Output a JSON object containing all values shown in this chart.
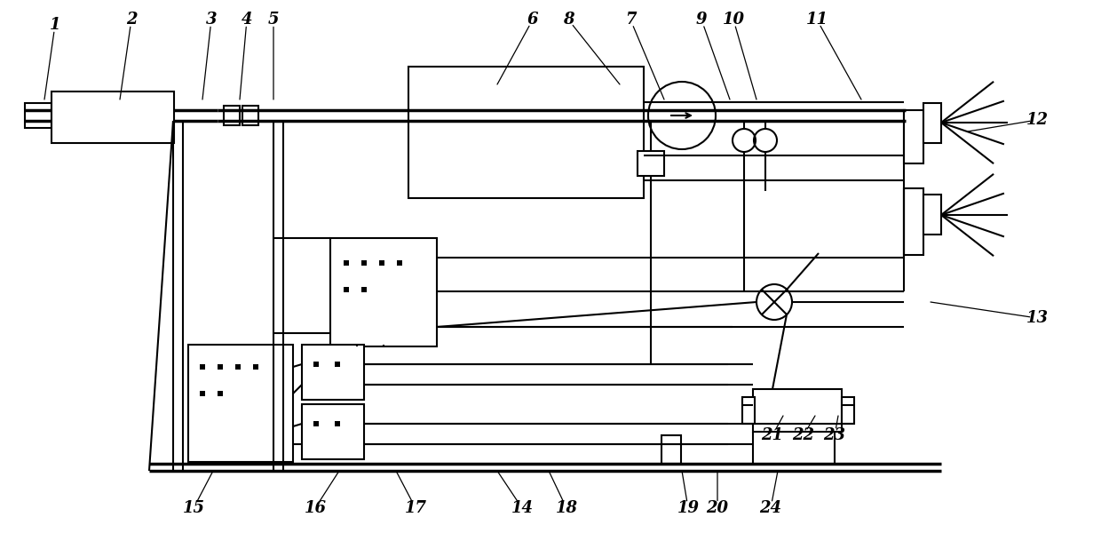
{
  "bg": "#ffffff",
  "lc": "#000000",
  "lw": 1.5,
  "tlw": 2.5,
  "lfs": 13,
  "fig_w": 12.4,
  "fig_h": 6.0,
  "dpi": 100,
  "labels": [
    [
      "1",
      62,
      28,
      50,
      112
    ],
    [
      "2",
      148,
      22,
      135,
      112
    ],
    [
      "3",
      238,
      22,
      228,
      112
    ],
    [
      "4",
      278,
      22,
      270,
      112
    ],
    [
      "5",
      308,
      22,
      308,
      112
    ],
    [
      "6",
      600,
      22,
      560,
      95
    ],
    [
      "8",
      640,
      22,
      698,
      95
    ],
    [
      "7",
      710,
      22,
      748,
      112
    ],
    [
      "9",
      790,
      22,
      822,
      112
    ],
    [
      "10",
      826,
      22,
      852,
      112
    ],
    [
      "11",
      920,
      22,
      970,
      112
    ],
    [
      "12",
      1168,
      135,
      1090,
      148
    ],
    [
      "13",
      1168,
      358,
      1048,
      340
    ],
    [
      "14",
      588,
      572,
      560,
      530
    ],
    [
      "15",
      218,
      572,
      240,
      530
    ],
    [
      "16",
      355,
      572,
      382,
      530
    ],
    [
      "17",
      468,
      572,
      446,
      530
    ],
    [
      "18",
      638,
      572,
      618,
      530
    ],
    [
      "19",
      775,
      572,
      768,
      530
    ],
    [
      "20",
      808,
      572,
      808,
      530
    ],
    [
      "21",
      870,
      490,
      882,
      468
    ],
    [
      "22",
      905,
      490,
      918,
      468
    ],
    [
      "23",
      940,
      490,
      944,
      468
    ],
    [
      "24",
      868,
      572,
      876,
      530
    ]
  ]
}
